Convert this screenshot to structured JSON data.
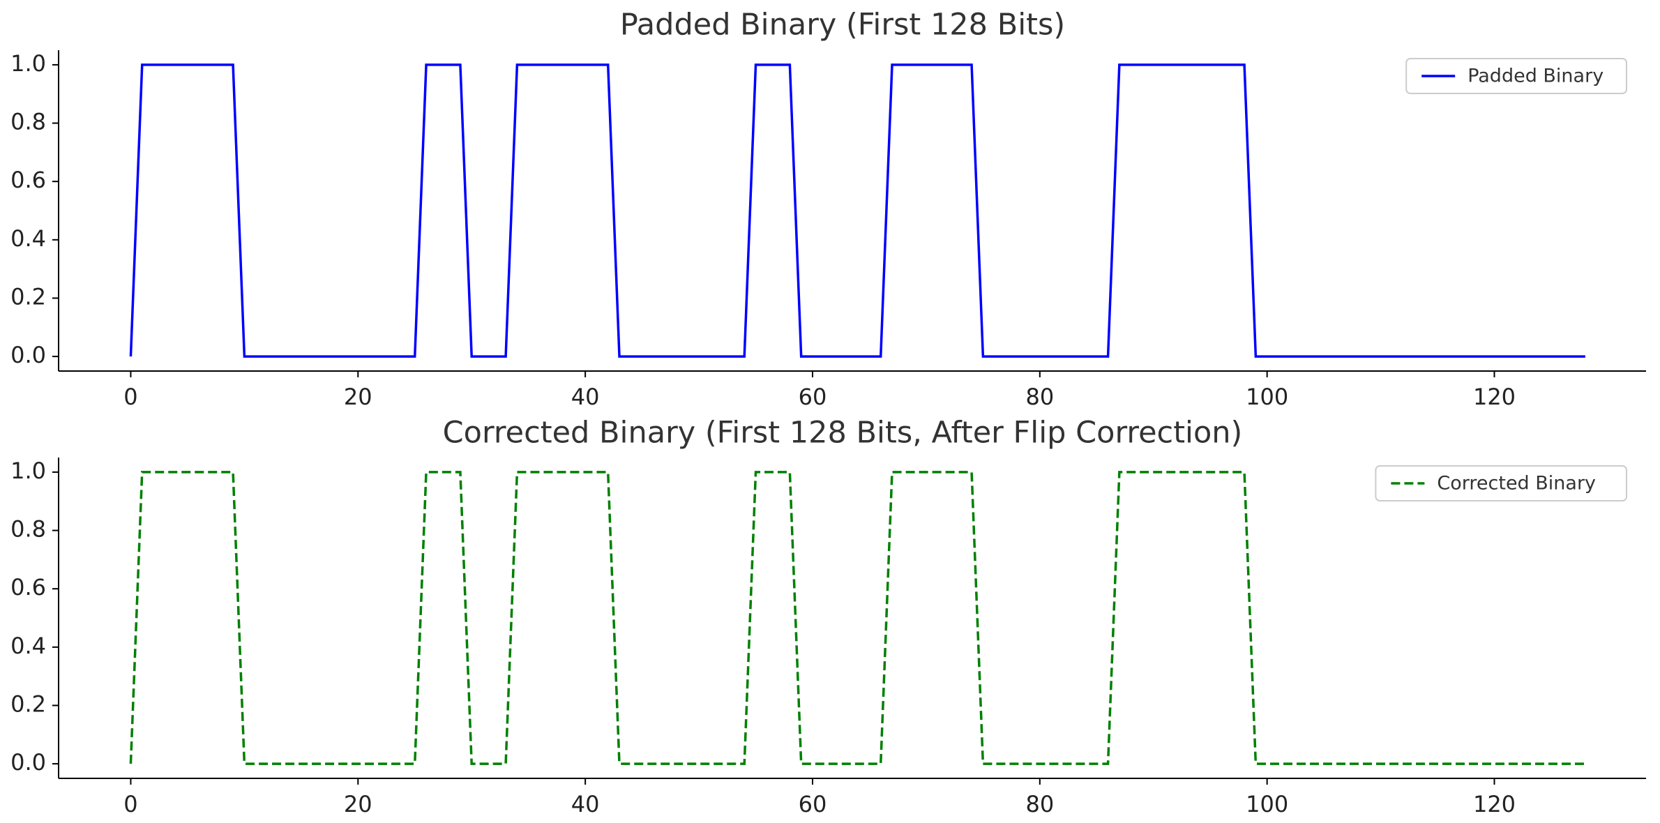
{
  "chart_data": [
    {
      "type": "line",
      "title": "Padded Binary (First 128 Bits)",
      "xlabel": "",
      "ylabel": "",
      "xlim": [
        -6.35,
        133.35
      ],
      "ylim": [
        -0.05,
        1.05
      ],
      "xticks": [
        0,
        20,
        40,
        60,
        80,
        100,
        120
      ],
      "yticks": [
        0.0,
        0.2,
        0.4,
        0.6,
        0.8,
        1.0
      ],
      "grid": false,
      "legend_position": "top-right",
      "series": [
        {
          "name": "Padded Binary",
          "color": "#0000ff",
          "style": "solid",
          "values": [
            0,
            1,
            1,
            1,
            1,
            1,
            1,
            1,
            1,
            1,
            0,
            0,
            0,
            0,
            0,
            0,
            0,
            0,
            0,
            0,
            0,
            0,
            0,
            0,
            0,
            0,
            1,
            1,
            1,
            1,
            0,
            0,
            0,
            0,
            1,
            1,
            1,
            1,
            1,
            1,
            1,
            1,
            1,
            0,
            0,
            0,
            0,
            0,
            0,
            0,
            0,
            0,
            0,
            0,
            0,
            1,
            1,
            1,
            1,
            0,
            0,
            0,
            0,
            0,
            0,
            0,
            0,
            1,
            1,
            1,
            1,
            1,
            1,
            1,
            1,
            0,
            0,
            0,
            0,
            0,
            0,
            0,
            0,
            0,
            0,
            0,
            0,
            1,
            1,
            1,
            1,
            1,
            1,
            1,
            1,
            1,
            1,
            1,
            1,
            0,
            0,
            0,
            0,
            0,
            0,
            0,
            0,
            0,
            0,
            0,
            0,
            0,
            0,
            0,
            0,
            0,
            0,
            0,
            0,
            0,
            0,
            0,
            0,
            0,
            0,
            0,
            0,
            0,
            0
          ]
        }
      ]
    },
    {
      "type": "line",
      "title": "Corrected Binary (First 128 Bits, After Flip Correction)",
      "xlabel": "",
      "ylabel": "",
      "xlim": [
        -6.35,
        133.35
      ],
      "ylim": [
        -0.05,
        1.05
      ],
      "xticks": [
        0,
        20,
        40,
        60,
        80,
        100,
        120
      ],
      "yticks": [
        0.0,
        0.2,
        0.4,
        0.6,
        0.8,
        1.0
      ],
      "grid": false,
      "legend_position": "top-right",
      "series": [
        {
          "name": "Corrected Binary",
          "color": "#008000",
          "style": "dashed",
          "values": [
            0,
            1,
            1,
            1,
            1,
            1,
            1,
            1,
            1,
            1,
            0,
            0,
            0,
            0,
            0,
            0,
            0,
            0,
            0,
            0,
            0,
            0,
            0,
            0,
            0,
            0,
            1,
            1,
            1,
            1,
            0,
            0,
            0,
            0,
            1,
            1,
            1,
            1,
            1,
            1,
            1,
            1,
            1,
            0,
            0,
            0,
            0,
            0,
            0,
            0,
            0,
            0,
            0,
            0,
            0,
            1,
            1,
            1,
            1,
            0,
            0,
            0,
            0,
            0,
            0,
            0,
            0,
            1,
            1,
            1,
            1,
            1,
            1,
            1,
            1,
            0,
            0,
            0,
            0,
            0,
            0,
            0,
            0,
            0,
            0,
            0,
            0,
            1,
            1,
            1,
            1,
            1,
            1,
            1,
            1,
            1,
            1,
            1,
            1,
            0,
            0,
            0,
            0,
            0,
            0,
            0,
            0,
            0,
            0,
            0,
            0,
            0,
            0,
            0,
            0,
            0,
            0,
            0,
            0,
            0,
            0,
            0,
            0,
            0,
            0,
            0,
            0,
            0,
            0
          ]
        }
      ]
    }
  ]
}
